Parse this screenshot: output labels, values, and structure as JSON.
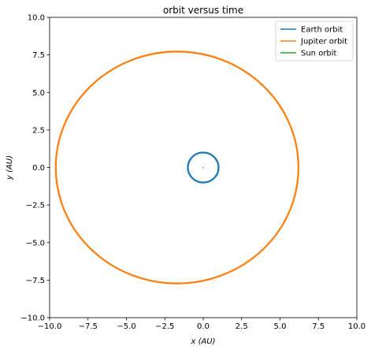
{
  "chart_data": {
    "type": "line",
    "title": "orbit versus time",
    "xlabel": "x (AU)",
    "ylabel": "y (AU)",
    "xlim": [
      -10.0,
      10.0
    ],
    "ylim": [
      -10.0,
      10.0
    ],
    "x_ticks": [
      -10.0,
      -7.5,
      -5.0,
      -2.5,
      0.0,
      2.5,
      5.0,
      7.5,
      10.0
    ],
    "y_ticks": [
      -10.0,
      -7.5,
      -5.0,
      -2.5,
      0.0,
      2.5,
      5.0,
      7.5,
      10.0
    ],
    "x_tick_labels": [
      "−10.0",
      "−7.5",
      "−5.0",
      "−2.5",
      "0.0",
      "2.5",
      "5.0",
      "7.5",
      "10.0"
    ],
    "y_tick_labels": [
      "−10.0",
      "−7.5",
      "−5.0",
      "−2.5",
      "0.0",
      "2.5",
      "5.0",
      "7.5",
      "10.0"
    ],
    "grid": false,
    "legend_position": "top-right",
    "series": [
      {
        "name": "Earth orbit",
        "color": "#1f77b4",
        "shape": "ellipse",
        "center": [
          0.0,
          0.0
        ],
        "semi_axes": [
          1.0,
          1.0
        ],
        "orbit_count": 3,
        "orbit_spread": 0.04
      },
      {
        "name": "Jupiter orbit",
        "color": "#ff7f0e",
        "shape": "ellipse",
        "center": [
          -1.7,
          0.0
        ],
        "semi_axes": [
          7.9,
          7.72
        ],
        "orbit_count": 2,
        "orbit_spread": 0.04
      },
      {
        "name": "Sun orbit",
        "color": "#2ca02c",
        "shape": "point",
        "center": [
          0.0,
          0.0
        ]
      }
    ]
  }
}
